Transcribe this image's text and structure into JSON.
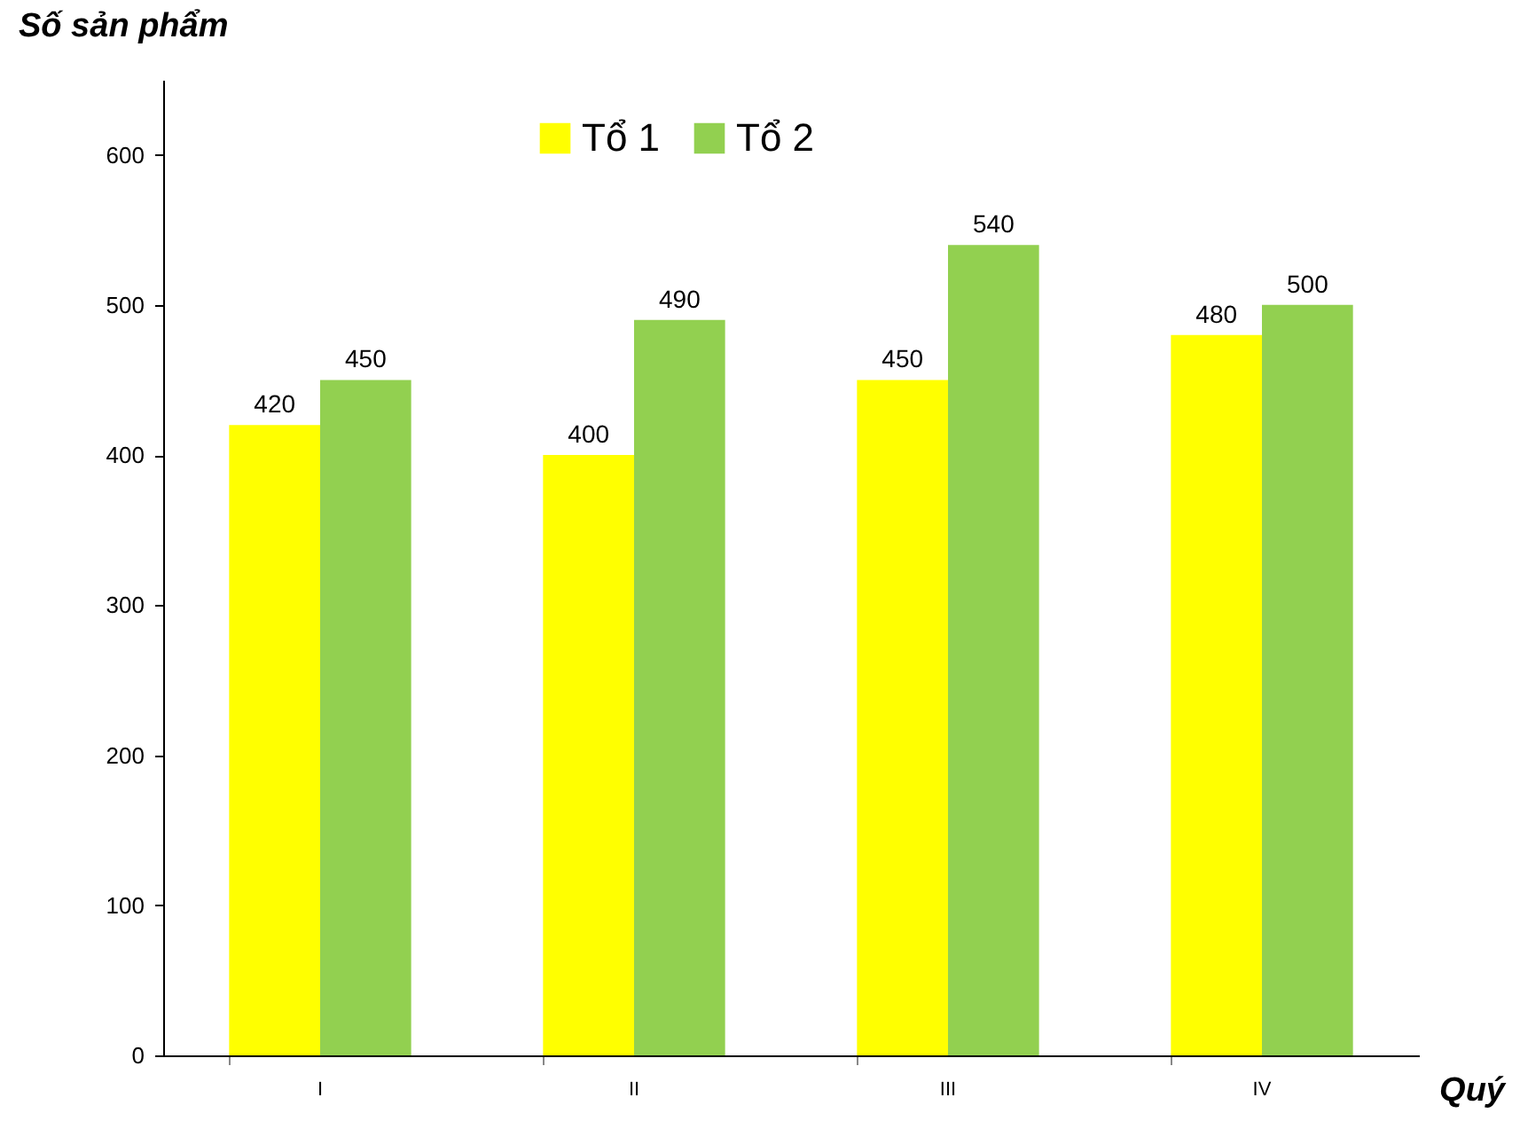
{
  "chart_data": {
    "type": "bar",
    "xlabel": "Quý",
    "ylabel": "Số sản phẩm",
    "categories": [
      "I",
      "II",
      "III",
      "IV"
    ],
    "series": [
      {
        "name": "Tổ 1",
        "color": "#ffff00",
        "values": [
          420,
          400,
          450,
          480
        ]
      },
      {
        "name": "Tổ 2",
        "color": "#92d050",
        "values": [
          450,
          490,
          540,
          500
        ]
      }
    ],
    "ylim": [
      0,
      650
    ],
    "yticks": [
      0,
      100,
      200,
      300,
      400,
      500,
      600
    ],
    "grid": false,
    "legend": "top",
    "data_labels": true
  }
}
